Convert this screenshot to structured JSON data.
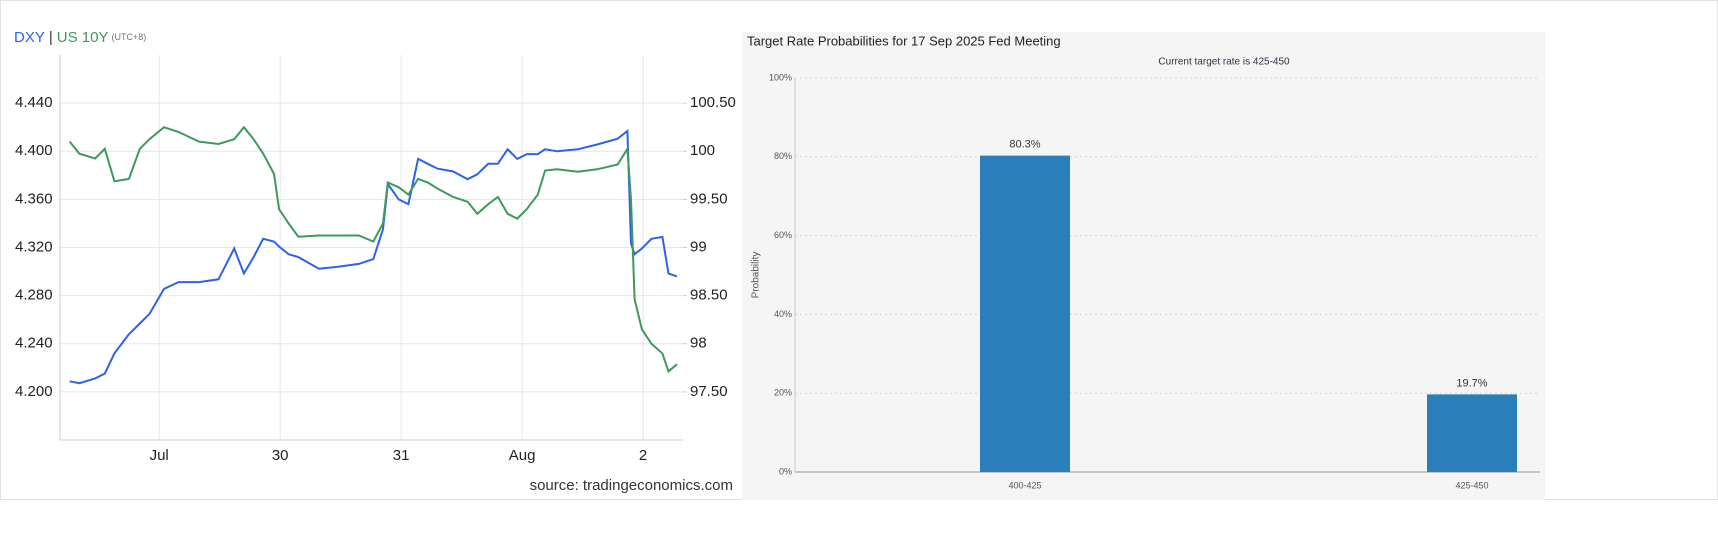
{
  "chart_data": [
    {
      "type": "line",
      "legend_separator": "|",
      "subtitle": "(UTC+8)",
      "source": "source: tradingeconomics.com",
      "x": [
        28.26,
        28.34,
        28.47,
        28.55,
        28.63,
        28.75,
        28.84,
        28.92,
        29.04,
        29.16,
        29.33,
        29.49,
        29.62,
        29.7,
        29.78,
        29.86,
        29.95,
        29.99,
        30.07,
        30.15,
        30.32,
        30.48,
        30.65,
        30.77,
        30.85,
        30.89,
        30.98,
        31.06,
        31.14,
        31.22,
        31.3,
        31.43,
        31.55,
        31.63,
        31.72,
        31.8,
        31.88,
        31.96,
        32.04,
        32.13,
        32.19,
        32.29,
        32.46,
        32.62,
        32.79,
        32.87,
        32.9,
        32.93,
        32.99,
        33.07,
        33.16,
        33.21,
        33.28
      ],
      "xlim": [
        28.18,
        33.33
      ],
      "xticks": [
        {
          "value": 29,
          "label": "Jul"
        },
        30,
        31,
        {
          "value": 32,
          "label": "Aug"
        },
        {
          "value": 33,
          "label": "2"
        }
      ],
      "ylim": [
        4.16,
        4.48
      ],
      "yticks": [
        {
          "value": 4.2,
          "label": "4.200"
        },
        {
          "value": 4.24,
          "label": "4.240"
        },
        {
          "value": 4.28,
          "label": "4.280"
        },
        {
          "value": 4.32,
          "label": "4.320"
        },
        {
          "value": 4.36,
          "label": "4.360"
        },
        {
          "value": 4.4,
          "label": "4.400"
        },
        {
          "value": 4.44,
          "label": "4.440"
        }
      ],
      "y2lim": [
        97.0,
        101.0
      ],
      "y2ticks": [
        {
          "value": 97.5,
          "label": "97.50"
        },
        98,
        {
          "value": 98.5,
          "label": "98.50"
        },
        99,
        {
          "value": 99.5,
          "label": "99.50"
        },
        100,
        {
          "value": 100.5,
          "label": "100.50"
        }
      ],
      "grid": true,
      "series": [
        {
          "name": "DXY",
          "color": "#2f62ea",
          "axis": "y2",
          "values": [
            97.61,
            97.59,
            97.64,
            97.69,
            97.9,
            98.1,
            98.21,
            98.31,
            98.57,
            98.64,
            98.64,
            98.67,
            98.99,
            98.73,
            98.9,
            99.09,
            99.06,
            99.01,
            98.93,
            98.9,
            98.78,
            98.8,
            98.83,
            98.88,
            99.19,
            99.66,
            99.5,
            99.45,
            99.92,
            99.87,
            99.82,
            99.79,
            99.71,
            99.76,
            99.87,
            99.87,
            100.02,
            99.92,
            99.97,
            99.97,
            100.02,
            100.0,
            100.02,
            100.07,
            100.13,
            100.21,
            99.04,
            98.93,
            98.99,
            99.09,
            99.11,
            98.73,
            98.7
          ]
        },
        {
          "name": "US 10Y",
          "color": "#3d9a5c",
          "values": [
            4.408,
            4.398,
            4.394,
            4.402,
            4.375,
            4.377,
            4.402,
            4.41,
            4.42,
            4.416,
            4.408,
            4.406,
            4.41,
            4.42,
            4.41,
            4.398,
            4.381,
            4.352,
            4.34,
            4.329,
            4.33,
            4.33,
            4.33,
            4.325,
            4.34,
            4.374,
            4.37,
            4.364,
            4.377,
            4.374,
            4.369,
            4.362,
            4.358,
            4.348,
            4.356,
            4.362,
            4.348,
            4.344,
            4.352,
            4.364,
            4.384,
            4.385,
            4.383,
            4.385,
            4.389,
            4.402,
            4.36,
            4.277,
            4.252,
            4.24,
            4.232,
            4.217,
            4.223
          ]
        }
      ]
    },
    {
      "type": "bar",
      "title": "Target Rate Probabilities for 17 Sep 2025 Fed Meeting",
      "subtitle": "Current target rate is 425-450",
      "ylabel": "Probability",
      "categories": [
        "400-425",
        "425-450"
      ],
      "values": [
        80.3,
        19.7
      ],
      "value_labels": [
        "80.3%",
        "19.7%"
      ],
      "color": "#2a7fba",
      "ylim": [
        0,
        100
      ],
      "yticks": [
        {
          "value": 0,
          "label": "0%"
        },
        {
          "value": 20,
          "label": "20%"
        },
        {
          "value": 40,
          "label": "40%"
        },
        {
          "value": 60,
          "label": "60%"
        },
        {
          "value": 80,
          "label": "80%"
        },
        {
          "value": 100,
          "label": "100%"
        }
      ],
      "grid": true
    }
  ]
}
